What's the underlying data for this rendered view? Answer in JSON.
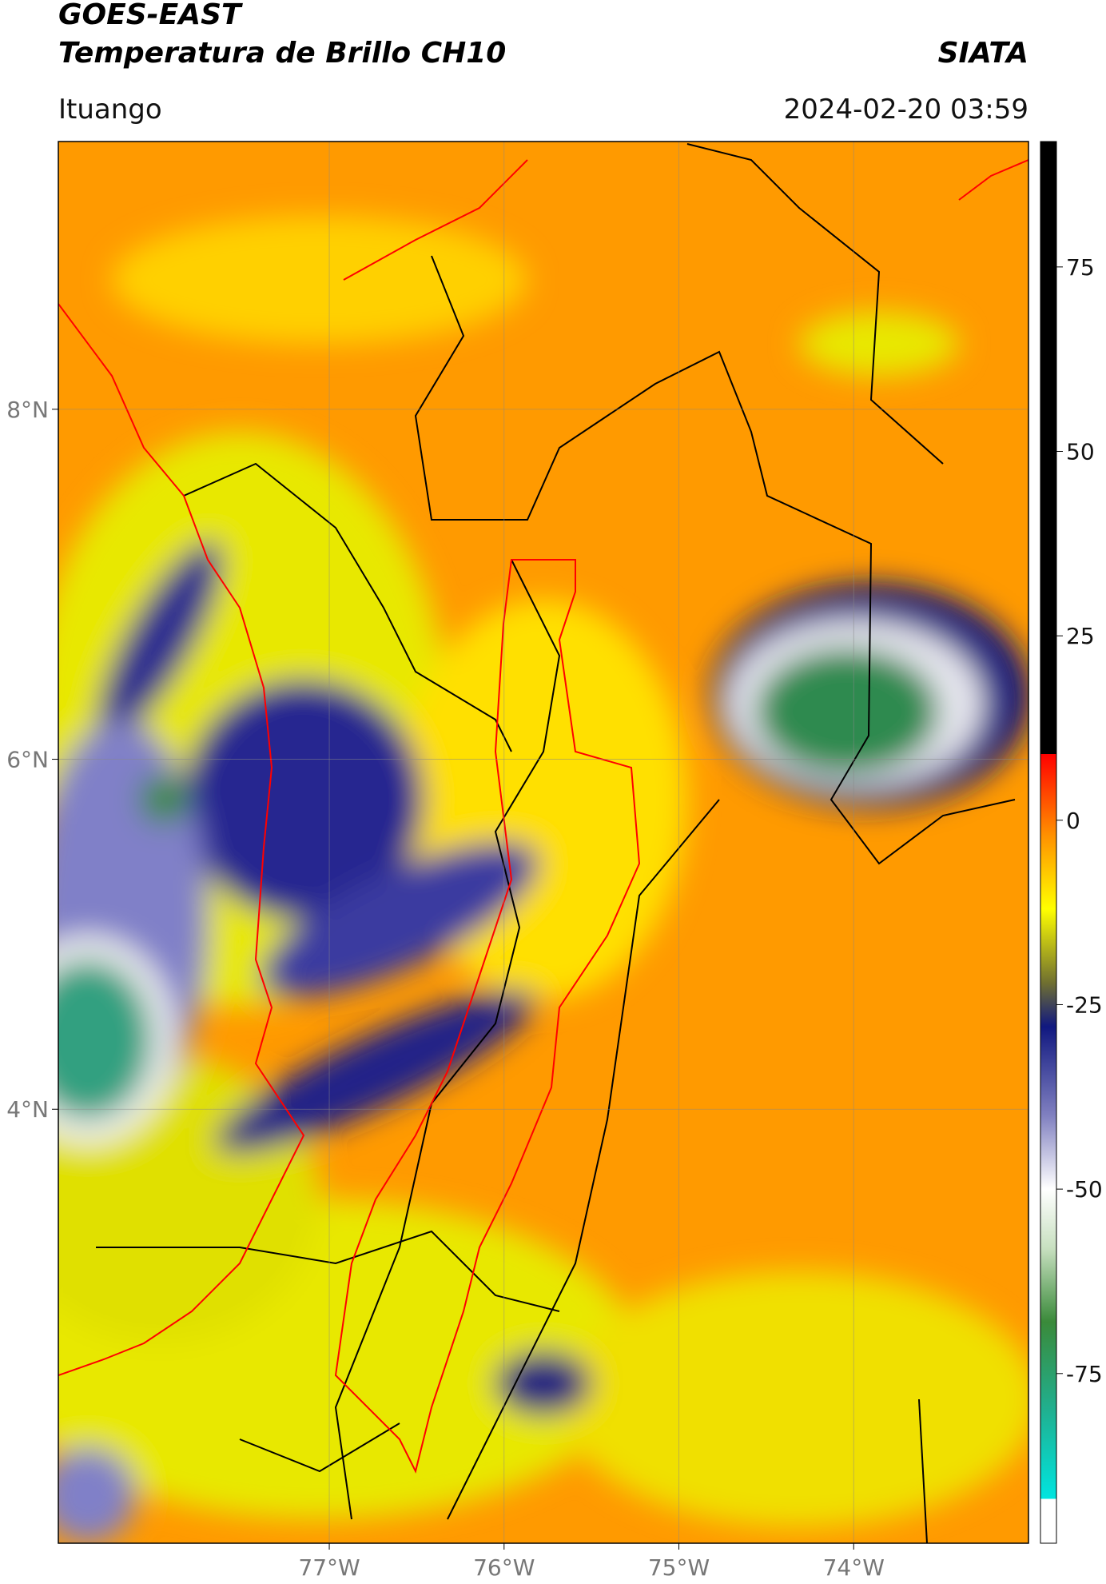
{
  "header": {
    "title": "GOES-EAST",
    "subtitle": "Temperatura de Brillo CH10",
    "brand": "SIATA",
    "location": "Ituango",
    "timestamp": "2024-02-20 03:59"
  },
  "map": {
    "lonlim": [
      -78.55,
      -73.0
    ],
    "latlim": [
      1.52,
      9.53
    ],
    "lonticks": [
      {
        "value": -77,
        "label": "77°W"
      },
      {
        "value": -76,
        "label": "76°W"
      },
      {
        "value": -75,
        "label": "75°W"
      },
      {
        "value": -74,
        "label": "74°W"
      }
    ],
    "latticks": [
      {
        "value": 8,
        "label": "8°N"
      },
      {
        "value": 6,
        "label": "6°N"
      },
      {
        "value": 4,
        "label": "4°N"
      }
    ],
    "grid": true
  },
  "colorbar": {
    "clim": [
      -98,
      92
    ],
    "ticks": [
      75,
      50,
      25,
      0,
      -25,
      -50,
      -75
    ],
    "colormap": [
      {
        "value": -98,
        "color": "#ffffff"
      },
      {
        "value": -92,
        "color": "#ffffff"
      },
      {
        "value": -92,
        "color": "#00e5e0"
      },
      {
        "value": -80,
        "color": "#20b090"
      },
      {
        "value": -68,
        "color": "#3a8a3a"
      },
      {
        "value": -58,
        "color": "#c8e0c0"
      },
      {
        "value": -50,
        "color": "#ffffff"
      },
      {
        "value": -40,
        "color": "#8080c0"
      },
      {
        "value": -28,
        "color": "#101880"
      },
      {
        "value": -22,
        "color": "#707030"
      },
      {
        "value": -12,
        "color": "#ffff00"
      },
      {
        "value": -2,
        "color": "#ff9000"
      },
      {
        "value": 9,
        "color": "#ff0000"
      },
      {
        "value": 9,
        "color": "#000000"
      },
      {
        "value": 92,
        "color": "#000000"
      }
    ]
  }
}
